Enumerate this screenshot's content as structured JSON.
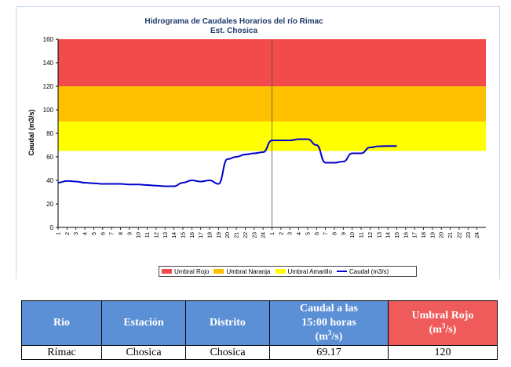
{
  "chart_data": {
    "type": "line",
    "title": "Hidrograma de Caudales Horarios del río Rimac",
    "subtitle": "Est. Chosica",
    "ylabel": "Caudal  (m3/s)",
    "xlabel": "",
    "ylim": [
      0,
      160
    ],
    "yticks": [
      "0",
      "20",
      "40",
      "60",
      "80",
      "100",
      "120",
      "140",
      "160"
    ],
    "xticks": [
      "1",
      "2",
      "3",
      "4",
      "5",
      "6",
      "7",
      "8",
      "9",
      "10",
      "11",
      "12",
      "13",
      "14",
      "15",
      "16",
      "17",
      "18",
      "19",
      "20",
      "21",
      "22",
      "23",
      "24",
      "1",
      "2",
      "3",
      "4",
      "5",
      "6",
      "7",
      "8",
      "9",
      "10",
      "11",
      "12",
      "13",
      "14",
      "15",
      "16",
      "17",
      "18",
      "19",
      "20",
      "21",
      "22",
      "23",
      "24"
    ],
    "thresholds": [
      {
        "name": "Umbral Rojo",
        "from": 120,
        "to": 160,
        "color": "#f24b4b"
      },
      {
        "name": "Umbral Naranja",
        "from": 90,
        "to": 120,
        "color": "#ffc000"
      },
      {
        "name": "Umbral Amarillo",
        "from": 65,
        "to": 90,
        "color": "#ffff00"
      }
    ],
    "series": [
      {
        "name": "Caudal (m3/s)",
        "color": "#0000cc",
        "x_index": [
          0,
          1,
          2,
          3,
          4,
          5,
          6,
          7,
          8,
          9,
          10,
          11,
          12,
          13,
          14,
          15,
          16,
          17,
          18,
          19,
          20,
          21,
          22,
          23,
          24,
          25,
          26,
          27,
          28,
          29,
          30,
          31,
          32,
          33,
          34,
          35,
          36,
          37,
          38
        ],
        "values": [
          38,
          39.5,
          39,
          38,
          37.5,
          37,
          37,
          37,
          36.5,
          36.5,
          36,
          35.5,
          35,
          35,
          38,
          40,
          39,
          40,
          37,
          58,
          60,
          62,
          63,
          64,
          74,
          74,
          74,
          75,
          75,
          70,
          55,
          55,
          56,
          63,
          63,
          68,
          69,
          69.17,
          69.17
        ]
      }
    ],
    "grid": false,
    "legend": "bottom"
  },
  "legend": {
    "items": [
      {
        "label": "Umbral Rojo",
        "color": "#f24b4b",
        "kind": "box"
      },
      {
        "label": "Umbral Naranja",
        "color": "#ffc000",
        "kind": "box"
      },
      {
        "label": "Umbral Amarillo",
        "color": "#ffff00",
        "kind": "box"
      },
      {
        "label": "Caudal (m3/s)",
        "color": "#0000cc",
        "kind": "line"
      }
    ]
  },
  "table": {
    "headers": {
      "rio": "Rio",
      "estacion": "Estación",
      "distrito": "Distrito",
      "caudal_line1": "Caudal a las",
      "caudal_line2": "15:00 horas",
      "caudal_unit_pre": "(m",
      "caudal_unit_sup": "3",
      "caudal_unit_post": "/s)",
      "umbral_line1": "Umbral Rojo",
      "umbral_unit_pre": "(m",
      "umbral_unit_sup": "3",
      "umbral_unit_post": "/s)"
    },
    "row": {
      "rio": "Rímac",
      "estacion": "Chosica",
      "distrito": "Chosica",
      "caudal": "69.17",
      "umbral": "120"
    }
  }
}
